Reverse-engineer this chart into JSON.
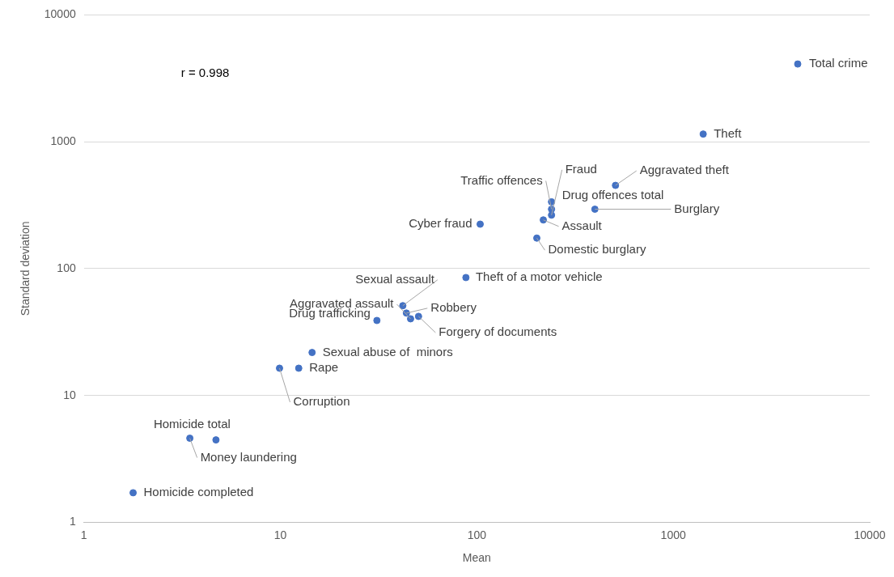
{
  "chart_data": {
    "type": "scatter",
    "xlabel": "Mean",
    "ylabel": "Standard deviation",
    "x": [
      4300,
      1420,
      508,
      399,
      240,
      240,
      240,
      218,
      104,
      202,
      88,
      42,
      46,
      43.8,
      31,
      50.5,
      14.5,
      12.4,
      9.9,
      4.7,
      3.46,
      1.78
    ],
    "values": [
      4100,
      1150,
      453,
      294,
      336,
      294,
      264,
      242,
      224,
      174,
      85,
      51,
      40.2,
      44.6,
      39,
      42,
      21.8,
      16.4,
      16.4,
      4.46,
      4.6,
      1.71
    ],
    "color": "#4472c4",
    "marker": "circle",
    "log": "xy",
    "grid": "y",
    "legend": false,
    "xlim": [
      1,
      10000
    ],
    "xticks": [
      1,
      10,
      100,
      1000,
      10000
    ],
    "ylim": [
      1,
      10000
    ],
    "yticks": [
      1,
      10,
      100,
      1000,
      10000
    ],
    "annotations": [
      "r = 0.998",
      {
        "text": "Total crime",
        "x": 4300,
        "y": 4100
      },
      {
        "text": "Theft",
        "x": 1420,
        "y": 1150
      },
      {
        "text": "Aggravated theft",
        "x": 508,
        "y": 453
      },
      {
        "text": "Burglary",
        "x": 399,
        "y": 294
      },
      {
        "text": "Drug offences total",
        "x": 240,
        "y": 336
      },
      {
        "text": "Traffic offences",
        "x": 240,
        "y": 294
      },
      {
        "text": "Fraud",
        "x": 240,
        "y": 264
      },
      {
        "text": "Assault",
        "x": 218,
        "y": 242
      },
      {
        "text": "Cyber fraud",
        "x": 104,
        "y": 224
      },
      {
        "text": "Domestic burglary",
        "x": 202,
        "y": 174
      },
      {
        "text": "Theft of a motor vehicle",
        "x": 88,
        "y": 85
      },
      {
        "text": "Sexual assault",
        "x": 42,
        "y": 51
      },
      {
        "text": "Aggravated assault",
        "x": 46,
        "y": 40.2
      },
      {
        "text": "Robbery",
        "x": 43.8,
        "y": 44.6
      },
      {
        "text": "Drug trafficking",
        "x": 31,
        "y": 39
      },
      {
        "text": "Forgery of documents",
        "x": 50.5,
        "y": 42
      },
      {
        "text": "Sexual abuse of  minors",
        "x": 14.5,
        "y": 21.8
      },
      {
        "text": "Rape",
        "x": 12.4,
        "y": 16.4
      },
      {
        "text": "Corruption",
        "x": 9.9,
        "y": 16.4
      },
      {
        "text": "Homicide total",
        "x": 4.7,
        "y": 4.46
      },
      {
        "text": "Money laundering",
        "x": 3.46,
        "y": 4.6
      },
      {
        "text": "Homicide completed",
        "x": 1.78,
        "y": 1.71
      }
    ]
  }
}
